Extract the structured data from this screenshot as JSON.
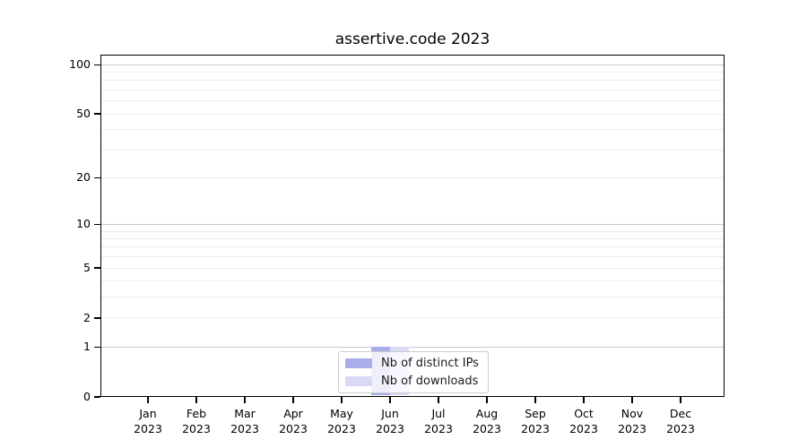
{
  "chart_data": {
    "type": "bar",
    "title": "assertive.code 2023",
    "x_year": "2023",
    "categories": [
      "Jan",
      "Feb",
      "Mar",
      "Apr",
      "May",
      "Jun",
      "Jul",
      "Aug",
      "Sep",
      "Oct",
      "Nov",
      "Dec"
    ],
    "series": [
      {
        "name": "Nb of distinct IPs",
        "color": "#a8aee9",
        "values": [
          0,
          0,
          0,
          0,
          0,
          1,
          0,
          0,
          0,
          0,
          0,
          0
        ]
      },
      {
        "name": "Nb of downloads",
        "color": "#d8daf5",
        "values": [
          0,
          0,
          0,
          0,
          0,
          1,
          0,
          0,
          0,
          0,
          0,
          0
        ]
      }
    ],
    "yscale": "log10(1+v)",
    "ylim": [
      0,
      111
    ],
    "y_tick_values": [
      0,
      1,
      2,
      5,
      10,
      20,
      50,
      100
    ],
    "y_major_gridlines": [
      1,
      10,
      100
    ],
    "y_minor_gridlines": [
      2,
      3,
      4,
      5,
      6,
      7,
      8,
      9,
      20,
      30,
      40,
      50,
      60,
      70,
      80,
      90
    ],
    "grid": true,
    "legend_position": "lower center",
    "colors": {
      "major_grid": "#c9c9c9",
      "minor_grid": "#ededed",
      "spine": "#000000",
      "text": "#000000",
      "legend_border": "#cccccc"
    }
  }
}
